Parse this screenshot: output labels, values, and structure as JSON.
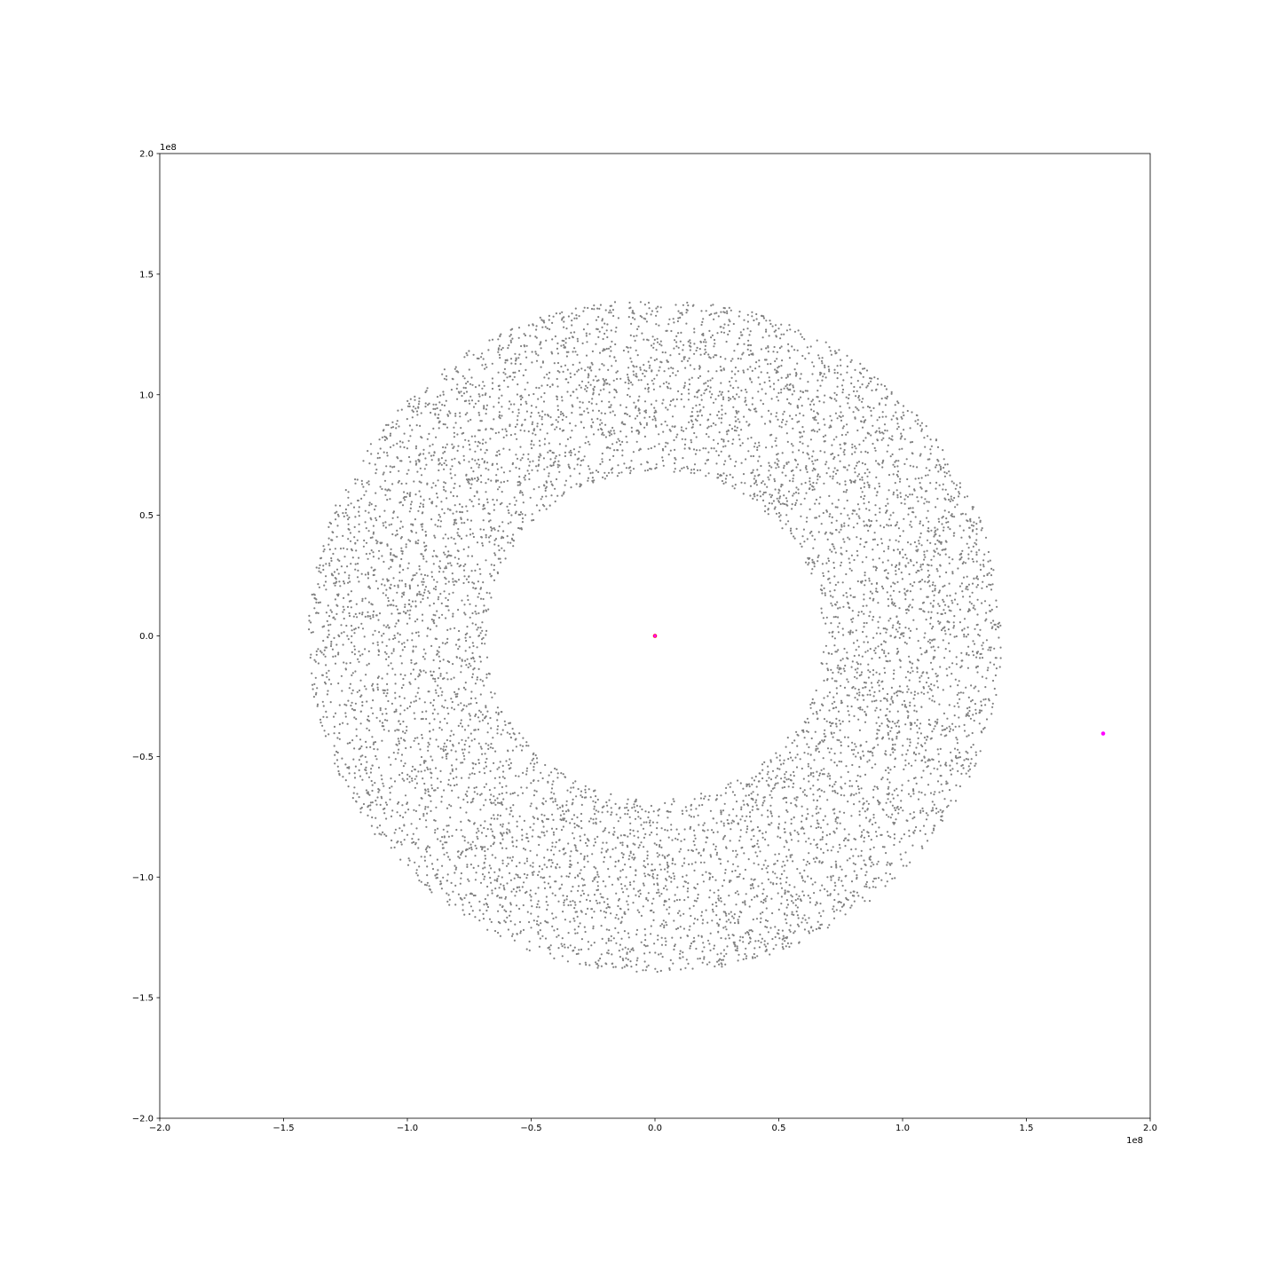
{
  "chart_data": {
    "type": "scatter",
    "title": "",
    "xlabel": "",
    "ylabel": "",
    "xlim": [
      -200000000.0,
      200000000.0
    ],
    "ylim": [
      -200000000.0,
      200000000.0
    ],
    "x_ticks": [
      -200000000.0,
      -150000000.0,
      -100000000.0,
      -50000000.0,
      0,
      50000000.0,
      100000000.0,
      150000000.0,
      200000000.0
    ],
    "x_tick_labels": [
      "−2.0",
      "−1.5",
      "−1.0",
      "−0.5",
      "0.0",
      "0.5",
      "1.0",
      "1.5",
      "2.0"
    ],
    "y_ticks": [
      200000000.0,
      150000000.0,
      100000000.0,
      50000000.0,
      0,
      -50000000.0,
      -100000000.0,
      -150000000.0,
      -200000000.0
    ],
    "y_tick_labels": [
      "2.0",
      "1.5",
      "1.0",
      "0.5",
      "0.0",
      "−0.5",
      "−1.0",
      "−1.5",
      "−2.0"
    ],
    "x_offset_label": "1e8",
    "y_offset_label": "1e8",
    "grid": false,
    "legend": "none",
    "series": [
      {
        "kind": "ring_particles",
        "color": "#808080",
        "center": [
          0,
          0
        ],
        "inner_radius": 68000000.0,
        "outer_radius": 140000000.0,
        "point_count_estimate": 12000
      },
      {
        "kind": "central_body",
        "color": "#ff0000",
        "x": [
          0
        ],
        "y": [
          0
        ]
      },
      {
        "kind": "central_body_marker",
        "color": "#ff00ff",
        "x": [
          0
        ],
        "y": [
          0
        ]
      },
      {
        "kind": "perturber",
        "color": "#ff00ff",
        "x": [
          181000000.0
        ],
        "y": [
          -40500000.0
        ]
      }
    ]
  }
}
